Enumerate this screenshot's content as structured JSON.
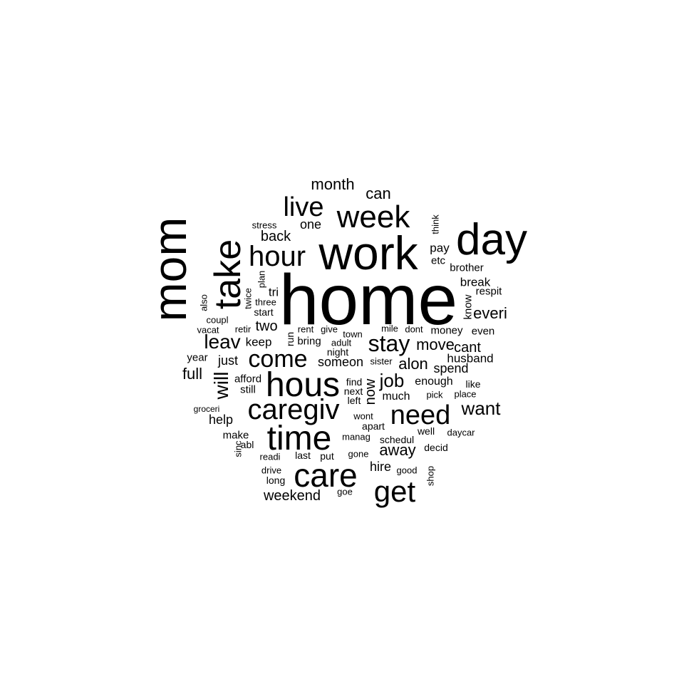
{
  "word_cloud": {
    "text_color": "#000000",
    "background_color": "#ffffff",
    "words": [
      {
        "id": "home",
        "text": "home",
        "vertical": false
      },
      {
        "id": "work",
        "text": "work",
        "vertical": false
      },
      {
        "id": "mom",
        "text": "mom",
        "vertical": true
      },
      {
        "id": "day",
        "text": "day",
        "vertical": false
      },
      {
        "id": "take",
        "text": "take",
        "vertical": true
      },
      {
        "id": "time",
        "text": "time",
        "vertical": false
      },
      {
        "id": "hous",
        "text": "hous",
        "vertical": false
      },
      {
        "id": "care",
        "text": "care",
        "vertical": false
      },
      {
        "id": "caregiv",
        "text": "caregiv",
        "vertical": false
      },
      {
        "id": "week",
        "text": "week",
        "vertical": false
      },
      {
        "id": "get",
        "text": "get",
        "vertical": false
      },
      {
        "id": "hour",
        "text": "hour",
        "vertical": false
      },
      {
        "id": "need",
        "text": "need",
        "vertical": false
      },
      {
        "id": "live",
        "text": "live",
        "vertical": false
      },
      {
        "id": "come",
        "text": "come",
        "vertical": false
      },
      {
        "id": "stay",
        "text": "stay",
        "vertical": false
      },
      {
        "id": "leav",
        "text": "leav",
        "vertical": false
      },
      {
        "id": "will",
        "text": "will",
        "vertical": true
      },
      {
        "id": "job",
        "text": "job",
        "vertical": false
      },
      {
        "id": "want",
        "text": "want",
        "vertical": false
      },
      {
        "id": "alon",
        "text": "alon",
        "vertical": false
      },
      {
        "id": "month",
        "text": "month",
        "vertical": false
      },
      {
        "id": "move",
        "text": "move",
        "vertical": false
      },
      {
        "id": "everi",
        "text": "everi",
        "vertical": false
      },
      {
        "id": "can",
        "text": "can",
        "vertical": false
      },
      {
        "id": "away",
        "text": "away",
        "vertical": false
      },
      {
        "id": "full",
        "text": "full",
        "vertical": false
      },
      {
        "id": "weekend",
        "text": "weekend",
        "vertical": false
      },
      {
        "id": "now",
        "text": "now",
        "vertical": true
      },
      {
        "id": "back",
        "text": "back",
        "vertical": false
      },
      {
        "id": "two",
        "text": "two",
        "vertical": false
      },
      {
        "id": "cant",
        "text": "cant",
        "vertical": false
      },
      {
        "id": "someon",
        "text": "someon",
        "vertical": false
      },
      {
        "id": "help",
        "text": "help",
        "vertical": false
      },
      {
        "id": "spend",
        "text": "spend",
        "vertical": false
      },
      {
        "id": "hire",
        "text": "hire",
        "vertical": false
      },
      {
        "id": "husband",
        "text": "husband",
        "vertical": false
      },
      {
        "id": "just",
        "text": "just",
        "vertical": false
      },
      {
        "id": "keep",
        "text": "keep",
        "vertical": false
      },
      {
        "id": "break",
        "text": "break",
        "vertical": false
      },
      {
        "id": "one",
        "text": "one",
        "vertical": false
      },
      {
        "id": "pay",
        "text": "pay",
        "vertical": false
      },
      {
        "id": "much",
        "text": "much",
        "vertical": false
      },
      {
        "id": "enough",
        "text": "enough",
        "vertical": false
      },
      {
        "id": "money",
        "text": "money",
        "vertical": false
      },
      {
        "id": "even",
        "text": "even",
        "vertical": false
      },
      {
        "id": "tri",
        "text": "tri",
        "vertical": false
      },
      {
        "id": "etc",
        "text": "etc",
        "vertical": false
      },
      {
        "id": "brother",
        "text": "brother",
        "vertical": false
      },
      {
        "id": "respit",
        "text": "respit",
        "vertical": false
      },
      {
        "id": "know",
        "text": "know",
        "vertical": true
      },
      {
        "id": "make",
        "text": "make",
        "vertical": false
      },
      {
        "id": "year",
        "text": "year",
        "vertical": false
      },
      {
        "id": "afford",
        "text": "afford",
        "vertical": false
      },
      {
        "id": "still",
        "text": "still",
        "vertical": false
      },
      {
        "id": "well",
        "text": "well",
        "vertical": false
      },
      {
        "id": "bring",
        "text": "bring",
        "vertical": false
      },
      {
        "id": "night",
        "text": "night",
        "vertical": false
      },
      {
        "id": "start",
        "text": "start",
        "vertical": false
      },
      {
        "id": "coupl",
        "text": "coupl",
        "vertical": false
      },
      {
        "id": "like",
        "text": "like",
        "vertical": false
      },
      {
        "id": "find",
        "text": "find",
        "vertical": false
      },
      {
        "id": "next",
        "text": "next",
        "vertical": false
      },
      {
        "id": "left",
        "text": "left",
        "vertical": false
      },
      {
        "id": "apart",
        "text": "apart",
        "vertical": false
      },
      {
        "id": "schedul",
        "text": "schedul",
        "vertical": false
      },
      {
        "id": "decid",
        "text": "decid",
        "vertical": false
      },
      {
        "id": "last",
        "text": "last",
        "vertical": false
      },
      {
        "id": "put",
        "text": "put",
        "vertical": false
      },
      {
        "id": "gone",
        "text": "gone",
        "vertical": false
      },
      {
        "id": "good",
        "text": "good",
        "vertical": false
      },
      {
        "id": "readi",
        "text": "readi",
        "vertical": false
      },
      {
        "id": "drive",
        "text": "drive",
        "vertical": false
      },
      {
        "id": "long",
        "text": "long",
        "vertical": false
      },
      {
        "id": "goe",
        "text": "goe",
        "vertical": false
      },
      {
        "id": "shop",
        "text": "shop",
        "vertical": true
      },
      {
        "id": "abl",
        "text": "abl",
        "vertical": false
      },
      {
        "id": "sinc",
        "text": "sinc",
        "vertical": true
      },
      {
        "id": "stress",
        "text": "stress",
        "vertical": false
      },
      {
        "id": "think",
        "text": "think",
        "vertical": true
      },
      {
        "id": "plan",
        "text": "plan",
        "vertical": true
      },
      {
        "id": "twice",
        "text": "twice",
        "vertical": true
      },
      {
        "id": "three",
        "text": "three",
        "vertical": false
      },
      {
        "id": "also",
        "text": "also",
        "vertical": true
      },
      {
        "id": "vacat",
        "text": "vacat",
        "vertical": false
      },
      {
        "id": "retir",
        "text": "retir",
        "vertical": false
      },
      {
        "id": "run",
        "text": "run",
        "vertical": true
      },
      {
        "id": "rent",
        "text": "rent",
        "vertical": false
      },
      {
        "id": "give",
        "text": "give",
        "vertical": false
      },
      {
        "id": "town",
        "text": "town",
        "vertical": false
      },
      {
        "id": "mile",
        "text": "mile",
        "vertical": false
      },
      {
        "id": "dont",
        "text": "dont",
        "vertical": false
      },
      {
        "id": "adult",
        "text": "adult",
        "vertical": false
      },
      {
        "id": "sister",
        "text": "sister",
        "vertical": false
      },
      {
        "id": "pick",
        "text": "pick",
        "vertical": false
      },
      {
        "id": "place",
        "text": "place",
        "vertical": false
      },
      {
        "id": "groceri",
        "text": "groceri",
        "vertical": false
      },
      {
        "id": "wont",
        "text": "wont",
        "vertical": false
      },
      {
        "id": "manag",
        "text": "manag",
        "vertical": false
      },
      {
        "id": "daycar",
        "text": "daycar",
        "vertical": false
      }
    ]
  }
}
